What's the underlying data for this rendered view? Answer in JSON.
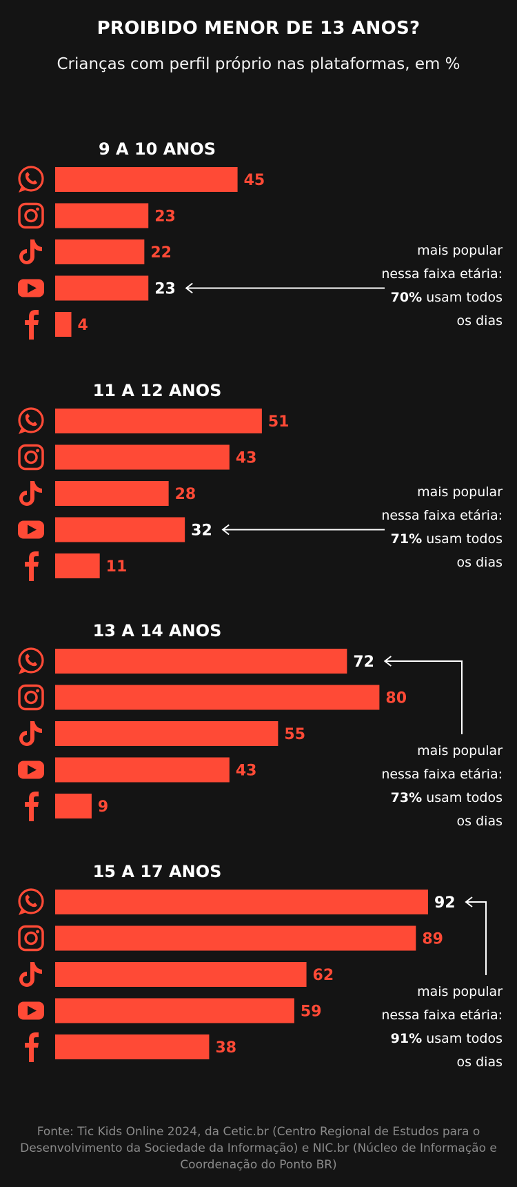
{
  "title": "PROIBIDO MENOR DE 13 ANOS?",
  "subtitle": "Crianças com perfil próprio nas plataformas, em %",
  "source": "Fonte: Tic Kids Online 2024, da Cetic.br (Centro Regional de Estudos para o Desenvolvimento da Sociedade da Informação) e NIC.br (Núcleo de Informação e Coordenação do Ponto BR)",
  "colors": {
    "background": "#141414",
    "bar": "#ff4a36",
    "highlight_text": "#ffffff",
    "label": "#ff4a36",
    "muted": "#8a8a8a"
  },
  "platform_icons": [
    "whatsapp-icon",
    "instagram-icon",
    "tiktok-icon",
    "youtube-icon",
    "facebook-icon"
  ],
  "chart_data": {
    "type": "bar",
    "orientation": "horizontal",
    "xlim": [
      0,
      100
    ],
    "groups": [
      {
        "title": "9 A 10 ANOS",
        "values": [
          45,
          23,
          22,
          23,
          4
        ],
        "highlight_index": 3,
        "note": {
          "lines": [
            "mais popular",
            "nessa faixa etária:"
          ],
          "percent": "70%",
          "rest": " usam todos",
          "last": "os dias"
        }
      },
      {
        "title": "11 A 12 ANOS",
        "values": [
          51,
          43,
          28,
          32,
          11
        ],
        "highlight_index": 3,
        "note": {
          "lines": [
            "mais popular",
            "nessa faixa etária:"
          ],
          "percent": "71%",
          "rest": " usam todos",
          "last": "os dias"
        }
      },
      {
        "title": "13 A 14 ANOS",
        "values": [
          72,
          80,
          55,
          43,
          9
        ],
        "highlight_index": 0,
        "note": {
          "lines": [
            "mais popular",
            "nessa faixa etária:"
          ],
          "percent": "73%",
          "rest": " usam todos",
          "last": "os dias"
        }
      },
      {
        "title": "15 A 17 ANOS",
        "values": [
          92,
          89,
          62,
          59,
          38
        ],
        "highlight_index": 0,
        "note": {
          "lines": [
            "mais popular",
            "nessa faixa etária:"
          ],
          "percent": "91%",
          "rest": " usam todos",
          "last": "os dias"
        }
      }
    ]
  }
}
